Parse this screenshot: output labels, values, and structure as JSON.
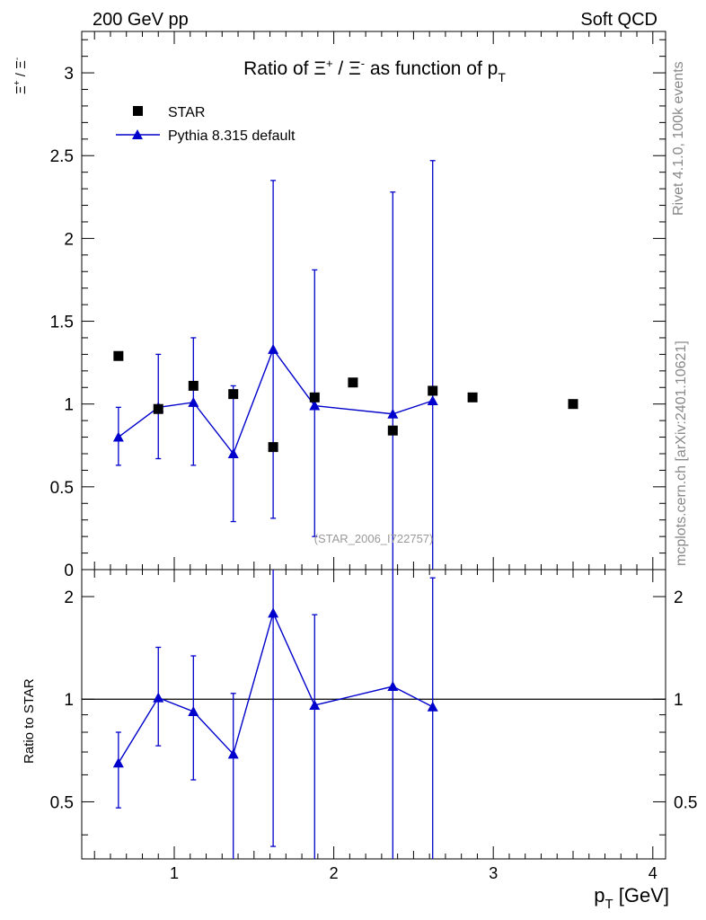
{
  "header": {
    "left": "200 GeV pp",
    "right": "Soft QCD"
  },
  "side_labels": {
    "rivet": "Rivet 4.1.0,  100k events",
    "mcplots": "mcplots.cern.ch [arXiv:2401.10621]"
  },
  "colors": {
    "data": "#000000",
    "mc": "#0000cc",
    "watermark": "#999999",
    "side_text": "#888888"
  },
  "chart_data": [
    {
      "type": "scatter",
      "title": "Ratio of Ξ⁺ / Ξ⁻ as function of p_T",
      "title_parts": {
        "t1": "Ratio of Ξ",
        "sup1": "+",
        "t2": " / Ξ",
        "sup2": "-",
        "t3": " as function of p",
        "sub": "T"
      },
      "ylabel_parts": {
        "a": "Ξ",
        "sup_a": "+",
        "slash": " / ",
        "b": "Ξ",
        "sup_b": "-"
      },
      "xlim": [
        0.42,
        4.08
      ],
      "ylim": [
        0,
        3.25
      ],
      "yticks": [
        0,
        0.5,
        1,
        1.5,
        2,
        2.5,
        3
      ],
      "ytick_labels": [
        "0",
        "0.5",
        "1",
        "1.5",
        "2",
        "2.5",
        "3"
      ],
      "watermark": "(STAR_2006_I722757)",
      "legend": {
        "position": "top-left",
        "entries": [
          "STAR",
          "Pythia 8.315 default"
        ]
      },
      "series": [
        {
          "name": "STAR",
          "marker": "square",
          "x": [
            0.65,
            0.9,
            1.12,
            1.37,
            1.62,
            1.88,
            2.12,
            2.37,
            2.62,
            2.87,
            3.5
          ],
          "y": [
            1.29,
            0.97,
            1.11,
            1.06,
            0.74,
            1.04,
            1.13,
            0.84,
            1.08,
            1.04,
            1.0
          ]
        },
        {
          "name": "Pythia 8.315 default",
          "marker": "triangle",
          "x": [
            0.65,
            0.9,
            1.12,
            1.37,
            1.62,
            1.88,
            2.37,
            2.62
          ],
          "y": [
            0.8,
            0.98,
            1.01,
            0.7,
            1.33,
            0.99,
            0.94,
            1.02
          ],
          "yerr_low": [
            0.63,
            0.67,
            0.63,
            0.29,
            0.31,
            0.2,
            0.0,
            0.0
          ],
          "yerr_high": [
            0.98,
            1.3,
            1.4,
            1.11,
            2.35,
            1.81,
            2.28,
            2.47
          ]
        }
      ]
    },
    {
      "type": "scatter",
      "title": "",
      "ylabel": "Ratio to STAR",
      "xlabel_parts": {
        "p": "p",
        "sub": "T",
        "rest": " [GeV]"
      },
      "xlim": [
        0.42,
        4.08
      ],
      "xticks": [
        1,
        2,
        3,
        4
      ],
      "xtick_labels": [
        "1",
        "2",
        "3",
        "4"
      ],
      "yscale": "log",
      "ylim": [
        0.34,
        2.4
      ],
      "yticks": [
        0.5,
        1,
        2
      ],
      "ytick_labels": [
        "0.5",
        "1",
        "2"
      ],
      "reference_line": 1,
      "series": [
        {
          "name": "Pythia 8.315 default / STAR",
          "marker": "triangle",
          "x": [
            0.65,
            0.9,
            1.12,
            1.37,
            1.62,
            1.88,
            2.37,
            2.62
          ],
          "y": [
            0.65,
            1.01,
            0.92,
            0.69,
            1.79,
            0.96,
            1.09,
            0.95
          ],
          "yerr_low": [
            0.48,
            0.73,
            0.58,
            0.3,
            0.37,
            0.2,
            0.0,
            0.0
          ],
          "yerr_high": [
            0.8,
            1.42,
            1.34,
            1.04,
            2.4,
            1.77,
            2.4,
            2.27
          ]
        }
      ]
    }
  ]
}
